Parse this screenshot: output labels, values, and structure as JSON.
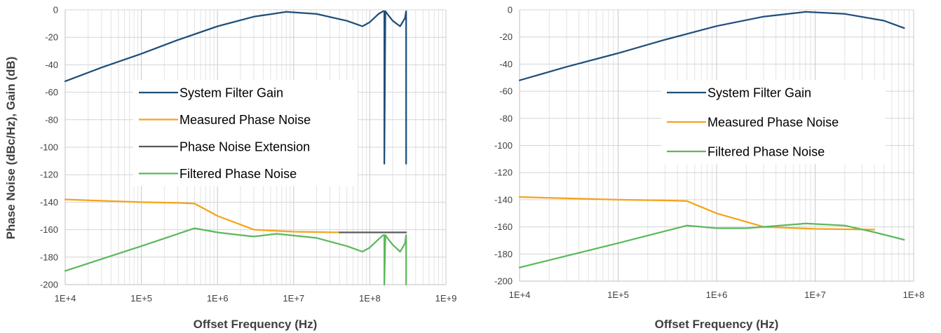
{
  "colors": {
    "gain": "#1f4e79",
    "measured": "#f5a31a",
    "extension": "#595959",
    "filtered": "#5cb85c"
  },
  "chart_data": [
    {
      "type": "line",
      "xscale": "log",
      "xlim": [
        10000,
        1000000000
      ],
      "ylim": [
        -200,
        0
      ],
      "xticks": [
        "1E+4",
        "1E+5",
        "1E+6",
        "1E+7",
        "1E+8",
        "1E+9"
      ],
      "yticks": [
        "0",
        "-20",
        "-40",
        "-60",
        "-80",
        "-100",
        "-120",
        "-140",
        "-160",
        "-180",
        "-200"
      ],
      "xlabel": "Offset Frequency (Hz)",
      "ylabel": "Phase Noise (dBc/Hz), Gain (dB)",
      "grid": true,
      "legend_position": "center-left",
      "series": [
        {
          "name": "System Filter Gain",
          "color_key": "gain",
          "x": [
            10000,
            30000,
            100000,
            300000,
            1000000,
            3000000,
            8000000,
            20000000,
            50000000,
            80000000,
            100000000,
            130000000,
            150000000,
            155000000,
            155000000,
            160000000,
            170000000,
            200000000,
            250000000,
            290000000,
            300000000,
            300000000
          ],
          "y": [
            -52,
            -42,
            -32,
            -22,
            -12,
            -5,
            -1.5,
            -3,
            -8,
            -12,
            -9,
            -3,
            -1,
            -1,
            -112,
            -1,
            -3,
            -8,
            -12,
            -6,
            -1,
            -112
          ]
        },
        {
          "name": "Measured Phase Noise",
          "color_key": "measured",
          "x": [
            10000,
            100000,
            300000,
            500000,
            1000000,
            3000000,
            10000000,
            40000000
          ],
          "y": [
            -138,
            -140,
            -140.5,
            -141,
            -150,
            -160,
            -161.5,
            -162
          ]
        },
        {
          "name": "Phase Noise Extension",
          "color_key": "extension",
          "x": [
            40000000,
            300000000
          ],
          "y": [
            -162,
            -162
          ]
        },
        {
          "name": "Filtered Phase Noise",
          "color_key": "filtered",
          "x": [
            10000,
            100000,
            500000,
            1000000,
            2000000,
            3000000,
            6000000,
            20000000,
            50000000,
            80000000,
            100000000,
            130000000,
            150000000,
            155000000,
            155000000,
            160000000,
            170000000,
            200000000,
            250000000,
            290000000,
            300000000,
            300000000
          ],
          "y": [
            -190,
            -172,
            -159,
            -162,
            -164,
            -165,
            -163,
            -166,
            -172,
            -176,
            -173,
            -167,
            -164,
            -164,
            -200,
            -164,
            -166,
            -171,
            -176,
            -170,
            -164,
            -200
          ]
        }
      ]
    },
    {
      "type": "line",
      "xscale": "log",
      "xlim": [
        10000,
        100000000
      ],
      "ylim": [
        -200,
        0
      ],
      "xticks": [
        "1E+4",
        "1E+5",
        "1E+6",
        "1E+7",
        "1E+8"
      ],
      "yticks": [
        "0",
        "-20",
        "-40",
        "-60",
        "-80",
        "-100",
        "-120",
        "-140",
        "-160",
        "-180",
        "-200"
      ],
      "xlabel": "Offset Frequency (Hz)",
      "ylabel": "",
      "grid": true,
      "legend_position": "center",
      "series": [
        {
          "name": "System Filter Gain",
          "color_key": "gain",
          "x": [
            10000,
            30000,
            100000,
            300000,
            1000000,
            3000000,
            8000000,
            20000000,
            50000000,
            80000000
          ],
          "y": [
            -52,
            -42,
            -32,
            -22,
            -12,
            -5,
            -1.5,
            -3,
            -8,
            -13.5
          ]
        },
        {
          "name": "Measured Phase Noise",
          "color_key": "measured",
          "x": [
            10000,
            100000,
            300000,
            500000,
            1000000,
            3000000,
            10000000,
            40000000
          ],
          "y": [
            -138,
            -140,
            -140.5,
            -141,
            -150,
            -160,
            -161.5,
            -162
          ]
        },
        {
          "name": "Filtered Phase Noise",
          "color_key": "filtered",
          "x": [
            10000,
            100000,
            500000,
            1000000,
            2000000,
            3000000,
            8000000,
            20000000,
            40000000,
            80000000
          ],
          "y": [
            -190,
            -172,
            -159,
            -161,
            -161,
            -160,
            -157.5,
            -159,
            -164,
            -169.5
          ]
        }
      ]
    }
  ]
}
